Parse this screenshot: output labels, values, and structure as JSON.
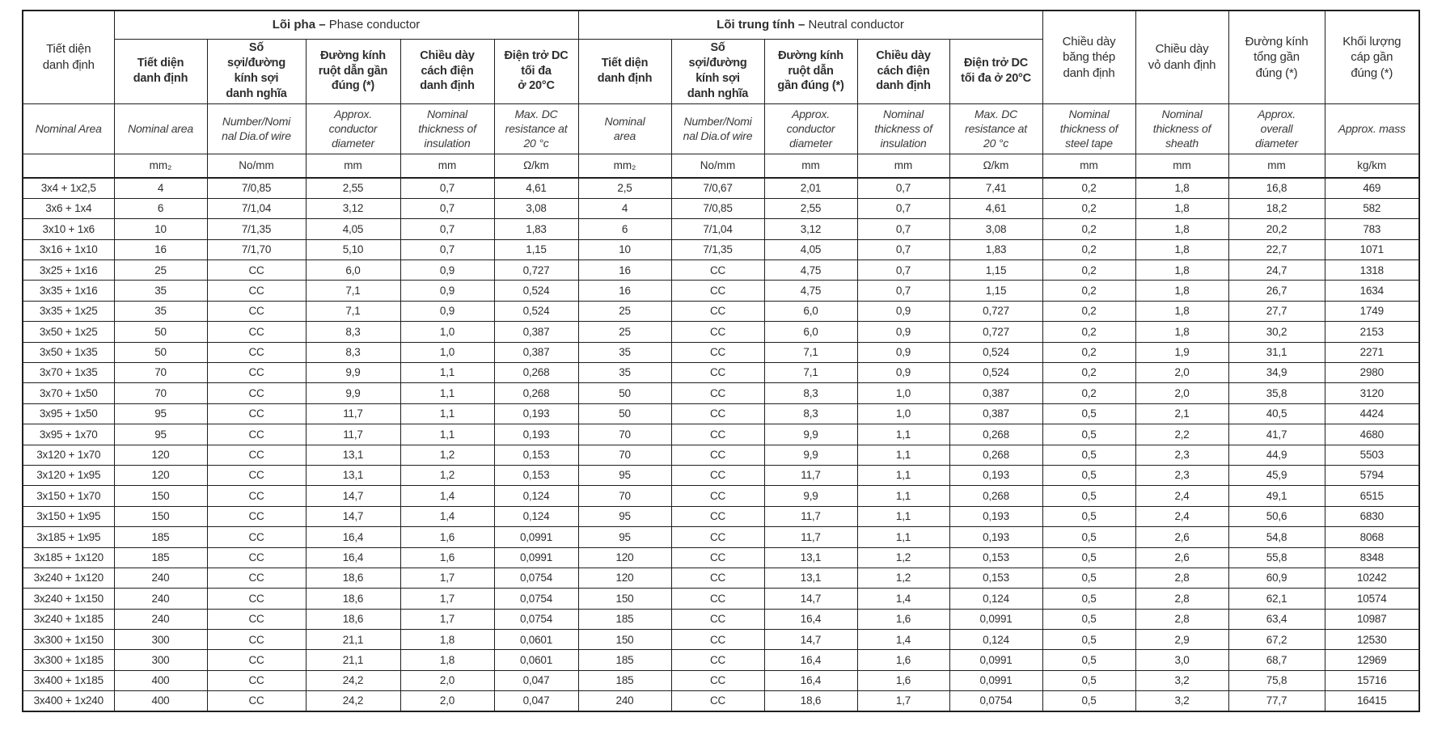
{
  "table": {
    "corner": {
      "vi": "Tiết diện\ndanh định",
      "en": "Nominal Area",
      "unit": ""
    },
    "groups": [
      {
        "vi": "Lõi pha –",
        "en": "Phase conductor"
      },
      {
        "vi": "Lõi trung tính –",
        "en": "Neutral conductor"
      }
    ],
    "phase_columns": [
      {
        "vi": "Tiết diện\ndanh định",
        "en": "Nominal  area",
        "unit": "mm₂"
      },
      {
        "vi": "Số\nsợi/đường\nkính sợi\ndanh nghĩa",
        "en": "Number/Nomi\nnal Dia.of wire",
        "unit": "No/mm"
      },
      {
        "vi": "Đường kính\nruột dẫn gần\nđúng (*)",
        "en": "Approx.\nconductor\ndiameter",
        "unit": "mm"
      },
      {
        "vi": "Chiều dày\ncách điện\ndanh định",
        "en": "Nominal\nthickness of\ninsulation",
        "unit": "mm"
      },
      {
        "vi": "Điện trở DC\ntối đa\nở 20°C",
        "en": "Max. DC\nresistance at\n20 °c",
        "unit": "Ω/km"
      }
    ],
    "neutral_columns": [
      {
        "vi": "Tiết diện\ndanh định",
        "en": "Nominal\narea",
        "unit": "mm₂"
      },
      {
        "vi": "Số\nsợi/đường\nkính sợi\ndanh nghĩa",
        "en": "Number/Nomi\nnal Dia.of wire",
        "unit": "No/mm"
      },
      {
        "vi": "Đường kính\nruột dẫn\ngần đúng (*)",
        "en": "Approx.\nconductor\ndiameter",
        "unit": "mm"
      },
      {
        "vi": "Chiều dày\ncách điện\ndanh định",
        "en": "Nominal\nthickness of\ninsulation",
        "unit": "mm"
      },
      {
        "vi": "Điện trở DC\ntối đa ở 20°C",
        "en": "Max. DC\nresistance at\n20 °c",
        "unit": "Ω/km"
      }
    ],
    "tail_columns": [
      {
        "vi": "Chiều dày\nbăng thép\ndanh định",
        "en": "Nominal\nthickness of\nsteel tape",
        "unit": "mm"
      },
      {
        "vi": "Chiều dày\nvỏ danh định",
        "en": "Nominal\nthickness of\nsheath",
        "unit": "mm"
      },
      {
        "vi": "Đường kính\ntổng gần\nđúng (*)",
        "en": "Approx.\noverall\ndiameter",
        "unit": "mm"
      },
      {
        "vi": "Khối lượng\ncáp gần\nđúng (*)",
        "en": "Approx. mass",
        "unit": "kg/km"
      }
    ],
    "rows": [
      [
        "3x4 + 1x2,5",
        "4",
        "7/0,85",
        "2,55",
        "0,7",
        "4,61",
        "2,5",
        "7/0,67",
        "2,01",
        "0,7",
        "7,41",
        "0,2",
        "1,8",
        "16,8",
        "469"
      ],
      [
        "3x6 + 1x4",
        "6",
        "7/1,04",
        "3,12",
        "0,7",
        "3,08",
        "4",
        "7/0,85",
        "2,55",
        "0,7",
        "4,61",
        "0,2",
        "1,8",
        "18,2",
        "582"
      ],
      [
        "3x10 + 1x6",
        "10",
        "7/1,35",
        "4,05",
        "0,7",
        "1,83",
        "6",
        "7/1,04",
        "3,12",
        "0,7",
        "3,08",
        "0,2",
        "1,8",
        "20,2",
        "783"
      ],
      [
        "3x16 + 1x10",
        "16",
        "7/1,70",
        "5,10",
        "0,7",
        "1,15",
        "10",
        "7/1,35",
        "4,05",
        "0,7",
        "1,83",
        "0,2",
        "1,8",
        "22,7",
        "1071"
      ],
      [
        "3x25 + 1x16",
        "25",
        "CC",
        "6,0",
        "0,9",
        "0,727",
        "16",
        "CC",
        "4,75",
        "0,7",
        "1,15",
        "0,2",
        "1,8",
        "24,7",
        "1318"
      ],
      [
        "3x35 + 1x16",
        "35",
        "CC",
        "7,1",
        "0,9",
        "0,524",
        "16",
        "CC",
        "4,75",
        "0,7",
        "1,15",
        "0,2",
        "1,8",
        "26,7",
        "1634"
      ],
      [
        "3x35 + 1x25",
        "35",
        "CC",
        "7,1",
        "0,9",
        "0,524",
        "25",
        "CC",
        "6,0",
        "0,9",
        "0,727",
        "0,2",
        "1,8",
        "27,7",
        "1749"
      ],
      [
        "3x50 + 1x25",
        "50",
        "CC",
        "8,3",
        "1,0",
        "0,387",
        "25",
        "CC",
        "6,0",
        "0,9",
        "0,727",
        "0,2",
        "1,8",
        "30,2",
        "2153"
      ],
      [
        "3x50 + 1x35",
        "50",
        "CC",
        "8,3",
        "1,0",
        "0,387",
        "35",
        "CC",
        "7,1",
        "0,9",
        "0,524",
        "0,2",
        "1,9",
        "31,1",
        "2271"
      ],
      [
        "3x70 + 1x35",
        "70",
        "CC",
        "9,9",
        "1,1",
        "0,268",
        "35",
        "CC",
        "7,1",
        "0,9",
        "0,524",
        "0,2",
        "2,0",
        "34,9",
        "2980"
      ],
      [
        "3x70 + 1x50",
        "70",
        "CC",
        "9,9",
        "1,1",
        "0,268",
        "50",
        "CC",
        "8,3",
        "1,0",
        "0,387",
        "0,2",
        "2,0",
        "35,8",
        "3120"
      ],
      [
        "3x95 + 1x50",
        "95",
        "CC",
        "11,7",
        "1,1",
        "0,193",
        "50",
        "CC",
        "8,3",
        "1,0",
        "0,387",
        "0,5",
        "2,1",
        "40,5",
        "4424"
      ],
      [
        "3x95 + 1x70",
        "95",
        "CC",
        "11,7",
        "1,1",
        "0,193",
        "70",
        "CC",
        "9,9",
        "1,1",
        "0,268",
        "0,5",
        "2,2",
        "41,7",
        "4680"
      ],
      [
        "3x120 + 1x70",
        "120",
        "CC",
        "13,1",
        "1,2",
        "0,153",
        "70",
        "CC",
        "9,9",
        "1,1",
        "0,268",
        "0,5",
        "2,3",
        "44,9",
        "5503"
      ],
      [
        "3x120 + 1x95",
        "120",
        "CC",
        "13,1",
        "1,2",
        "0,153",
        "95",
        "CC",
        "11,7",
        "1,1",
        "0,193",
        "0,5",
        "2,3",
        "45,9",
        "5794"
      ],
      [
        "3x150 + 1x70",
        "150",
        "CC",
        "14,7",
        "1,4",
        "0,124",
        "70",
        "CC",
        "9,9",
        "1,1",
        "0,268",
        "0,5",
        "2,4",
        "49,1",
        "6515"
      ],
      [
        "3x150 + 1x95",
        "150",
        "CC",
        "14,7",
        "1,4",
        "0,124",
        "95",
        "CC",
        "11,7",
        "1,1",
        "0,193",
        "0,5",
        "2,4",
        "50,6",
        "6830"
      ],
      [
        "3x185 + 1x95",
        "185",
        "CC",
        "16,4",
        "1,6",
        "0,0991",
        "95",
        "CC",
        "11,7",
        "1,1",
        "0,193",
        "0,5",
        "2,6",
        "54,8",
        "8068"
      ],
      [
        "3x185 + 1x120",
        "185",
        "CC",
        "16,4",
        "1,6",
        "0,0991",
        "120",
        "CC",
        "13,1",
        "1,2",
        "0,153",
        "0,5",
        "2,6",
        "55,8",
        "8348"
      ],
      [
        "3x240 + 1x120",
        "240",
        "CC",
        "18,6",
        "1,7",
        "0,0754",
        "120",
        "CC",
        "13,1",
        "1,2",
        "0,153",
        "0,5",
        "2,8",
        "60,9",
        "10242"
      ],
      [
        "3x240 + 1x150",
        "240",
        "CC",
        "18,6",
        "1,7",
        "0,0754",
        "150",
        "CC",
        "14,7",
        "1,4",
        "0,124",
        "0,5",
        "2,8",
        "62,1",
        "10574"
      ],
      [
        "3x240 + 1x185",
        "240",
        "CC",
        "18,6",
        "1,7",
        "0,0754",
        "185",
        "CC",
        "16,4",
        "1,6",
        "0,0991",
        "0,5",
        "2,8",
        "63,4",
        "10987"
      ],
      [
        "3x300 + 1x150",
        "300",
        "CC",
        "21,1",
        "1,8",
        "0,0601",
        "150",
        "CC",
        "14,7",
        "1,4",
        "0,124",
        "0,5",
        "2,9",
        "67,2",
        "12530"
      ],
      [
        "3x300 + 1x185",
        "300",
        "CC",
        "21,1",
        "1,8",
        "0,0601",
        "185",
        "CC",
        "16,4",
        "1,6",
        "0,0991",
        "0,5",
        "3,0",
        "68,7",
        "12969"
      ],
      [
        "3x400 + 1x185",
        "400",
        "CC",
        "24,2",
        "2,0",
        "0,047",
        "185",
        "CC",
        "16,4",
        "1,6",
        "0,0991",
        "0,5",
        "3,2",
        "75,8",
        "15716"
      ],
      [
        "3x400 + 1x240",
        "400",
        "CC",
        "24,2",
        "2,0",
        "0,047",
        "240",
        "CC",
        "18,6",
        "1,7",
        "0,0754",
        "0,5",
        "3,2",
        "77,7",
        "16415"
      ]
    ],
    "colors": {
      "border": "#1f1f1f",
      "text": "#2e2e2e",
      "background": "#ffffff"
    }
  }
}
